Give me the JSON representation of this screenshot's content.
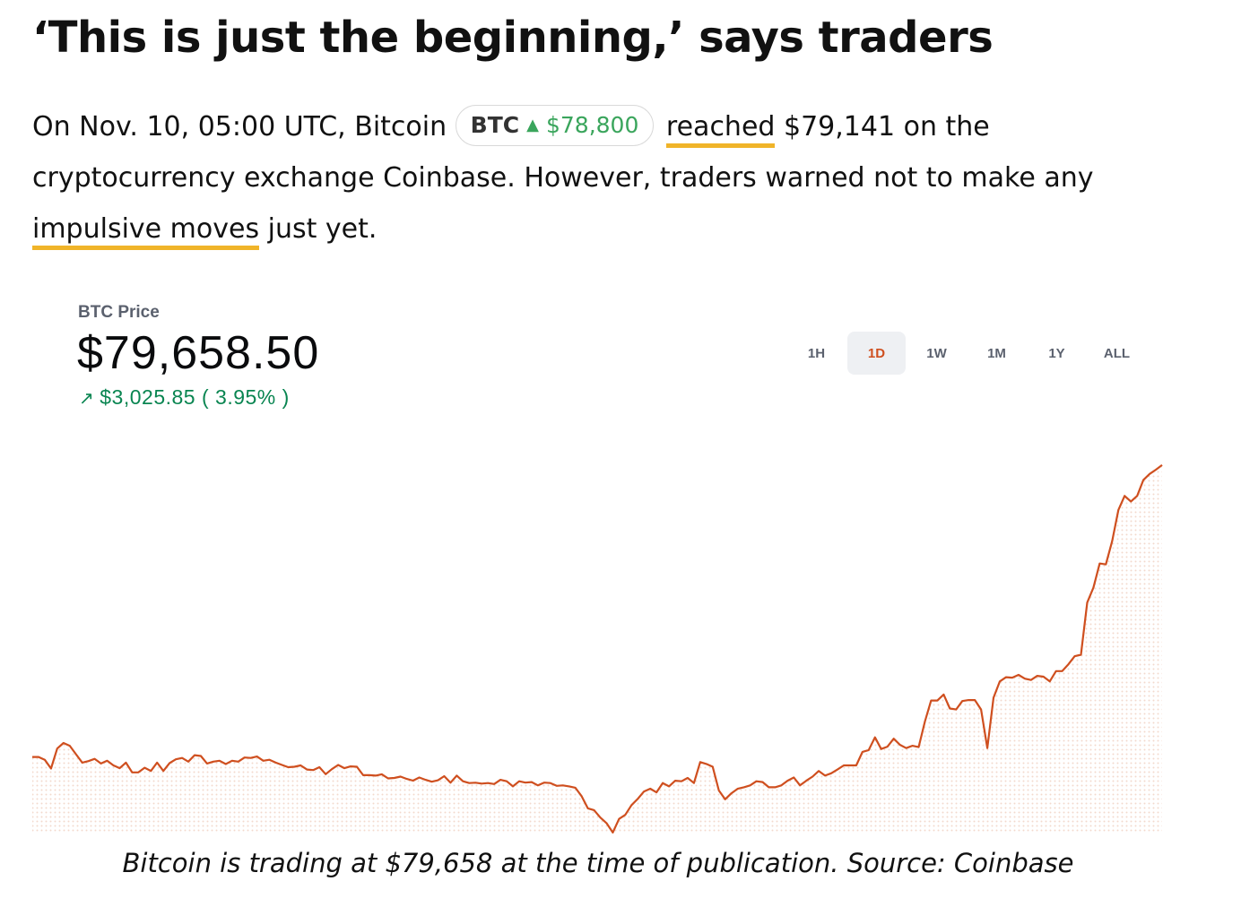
{
  "article": {
    "headline": "‘This is just the beginning,’ says traders",
    "para_line1_pre": "On Nov. 10, 05:00 UTC, Bitcoin",
    "ticker": {
      "symbol": "BTC",
      "arrow": "▲",
      "price": "$78,800"
    },
    "link_reached": "reached",
    "para_line1_post": " $79,141 on the",
    "para_line2": "cryptocurrency exchange Coinbase. However, traders warned not to make any",
    "link_impulsive": "impulsive moves",
    "para_line3_post": " just yet.",
    "caption": "Bitcoin is trading at $79,658 at the time of publication. Source: Coinbase"
  },
  "widget": {
    "label": "BTC Price",
    "price": "$79,658.50",
    "change_arrow": "↗",
    "change": "$3,025.85 ( 3.95% )",
    "ranges": [
      "1H",
      "1D",
      "1W",
      "1M",
      "1Y",
      "ALL"
    ],
    "active_range": "1D",
    "colors": {
      "line": "#cf4f1f",
      "positive": "#098551",
      "underline": "#f0b429"
    }
  },
  "chart_data": {
    "type": "area",
    "series": [
      {
        "values": [
          76632,
          76632,
          76603,
          76512,
          76719,
          76777,
          76748,
          76661,
          76574,
          76589,
          76613,
          76564,
          76593,
          76545,
          76516,
          76574,
          76473,
          76473,
          76521,
          76487,
          76574,
          76487,
          76569,
          76608,
          76622,
          76584,
          76651,
          76642,
          76564,
          76584,
          76593,
          76559,
          76593,
          76584,
          76627,
          76622,
          76637,
          76593,
          76603,
          76574,
          76550,
          76526,
          76531,
          76545,
          76502,
          76497,
          76526,
          76454,
          76506,
          76550,
          76516,
          76535,
          76531,
          76444,
          76444,
          76439,
          76453,
          76410,
          76415,
          76429,
          76405,
          76387,
          76420,
          76396,
          76376,
          76391,
          76434,
          76366,
          76439,
          76381,
          76362,
          76366,
          76357,
          76362,
          76352,
          76396,
          76381,
          76328,
          76381,
          76367,
          76372,
          76338,
          76367,
          76362,
          76333,
          76338,
          76328,
          76314,
          76227,
          76101,
          76082,
          76005,
          75948,
          75850,
          75991,
          76033,
          76134,
          76198,
          76275,
          76304,
          76266,
          76362,
          76328,
          76386,
          76381,
          76415,
          76362,
          76579,
          76560,
          76531,
          76285,
          76194,
          76256,
          76303,
          76319,
          76338,
          76381,
          76372,
          76319,
          76319,
          76338,
          76386,
          76420,
          76338,
          76386,
          76429,
          76487,
          76439,
          76463,
          76502,
          76545,
          76545,
          76545,
          76685,
          76704,
          76835,
          76715,
          76739,
          76821,
          76758,
          76724,
          76748,
          76734,
          76999,
          77216,
          77216,
          77279,
          77134,
          77124,
          77211,
          77221,
          77221,
          77124,
          76724,
          77245,
          77414,
          77458,
          77453,
          77482,
          77443,
          77429,
          77472,
          77463,
          77414,
          77521,
          77521,
          77592,
          77675,
          77690,
          78230,
          78384,
          78635,
          78625,
          78866,
          79189,
          79334,
          79276,
          79334,
          79498,
          79561,
          79605,
          79653
        ]
      }
    ],
    "ylim": [
      75840,
      79680
    ],
    "grid": false
  }
}
